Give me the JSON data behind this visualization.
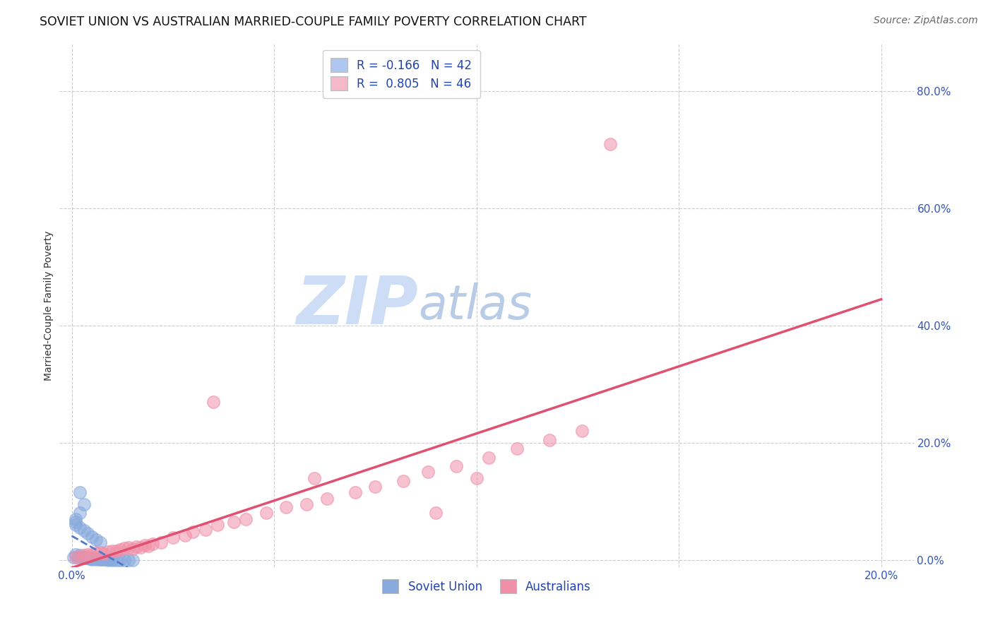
{
  "title": "SOVIET UNION VS AUSTRALIAN MARRIED-COUPLE FAMILY POVERTY CORRELATION CHART",
  "source": "Source: ZipAtlas.com",
  "ylabel": "Married-Couple Family Poverty",
  "ytick_labels": [
    "0.0%",
    "20.0%",
    "40.0%",
    "60.0%",
    "80.0%"
  ],
  "xtick_positions": [
    0.0,
    0.05,
    0.1,
    0.15,
    0.2
  ],
  "ytick_positions": [
    0.0,
    0.2,
    0.4,
    0.6,
    0.8
  ],
  "xlim": [
    -0.003,
    0.208
  ],
  "ylim": [
    -0.012,
    0.88
  ],
  "legend_entries": [
    {
      "label": "R = -0.166   N = 42",
      "color": "#aec6f0"
    },
    {
      "label": "R =  0.805   N = 46",
      "color": "#f4b8c8"
    }
  ],
  "watermark_zip": "ZIP",
  "watermark_atlas": "atlas",
  "watermark_color_zip": "#cdddf5",
  "watermark_color_atlas": "#b8cce8",
  "background_color": "#ffffff",
  "grid_color": "#cccccc",
  "title_fontsize": 12.5,
  "source_fontsize": 10,
  "axis_label_fontsize": 10,
  "tick_fontsize": 11,
  "tick_color": "#3355bb",
  "soviet_color": "#88aadd",
  "australian_color": "#f090a8",
  "soviet_line_color": "#5577cc",
  "australian_line_color": "#e05070",
  "soviet_line_style": "--",
  "australian_line_style": "-",
  "soviet_x": [
    0.0005,
    0.001,
    0.0015,
    0.002,
    0.0025,
    0.003,
    0.003,
    0.0035,
    0.004,
    0.004,
    0.0045,
    0.005,
    0.005,
    0.005,
    0.006,
    0.006,
    0.007,
    0.007,
    0.007,
    0.008,
    0.008,
    0.009,
    0.009,
    0.01,
    0.01,
    0.011,
    0.012,
    0.013,
    0.014,
    0.015,
    0.002,
    0.003,
    0.001,
    0.001,
    0.002,
    0.003,
    0.004,
    0.005,
    0.006,
    0.007,
    0.001,
    0.002
  ],
  "soviet_y": [
    0.005,
    0.01,
    0.005,
    0.008,
    0.005,
    0.003,
    0.005,
    0.003,
    0.004,
    0.003,
    0.002,
    0.002,
    0.003,
    0.001,
    0.002,
    0.001,
    0.001,
    0.002,
    0.001,
    0.001,
    0.001,
    0.001,
    0.0,
    0.001,
    0.0,
    0.0,
    0.0,
    0.0,
    0.0,
    0.0,
    0.115,
    0.095,
    0.065,
    0.06,
    0.055,
    0.05,
    0.045,
    0.04,
    0.035,
    0.03,
    0.07,
    0.08
  ],
  "australian_x": [
    0.001,
    0.002,
    0.003,
    0.004,
    0.005,
    0.006,
    0.007,
    0.008,
    0.009,
    0.01,
    0.011,
    0.012,
    0.013,
    0.014,
    0.015,
    0.016,
    0.017,
    0.018,
    0.019,
    0.02,
    0.022,
    0.025,
    0.028,
    0.03,
    0.033,
    0.036,
    0.04,
    0.043,
    0.048,
    0.053,
    0.058,
    0.063,
    0.07,
    0.075,
    0.082,
    0.088,
    0.095,
    0.103,
    0.11,
    0.118,
    0.126,
    0.133,
    0.035,
    0.06,
    0.09,
    0.1
  ],
  "australian_y": [
    0.005,
    0.006,
    0.008,
    0.009,
    0.01,
    0.012,
    0.013,
    0.011,
    0.014,
    0.015,
    0.016,
    0.018,
    0.02,
    0.022,
    0.019,
    0.023,
    0.021,
    0.025,
    0.024,
    0.028,
    0.03,
    0.038,
    0.042,
    0.048,
    0.052,
    0.06,
    0.065,
    0.07,
    0.08,
    0.09,
    0.095,
    0.105,
    0.115,
    0.125,
    0.135,
    0.15,
    0.16,
    0.175,
    0.19,
    0.205,
    0.22,
    0.71,
    0.27,
    0.14,
    0.08,
    0.14
  ],
  "bottom_legend": [
    {
      "label": "Soviet Union",
      "color": "#88aadd"
    },
    {
      "label": "Australians",
      "color": "#f090a8"
    }
  ]
}
